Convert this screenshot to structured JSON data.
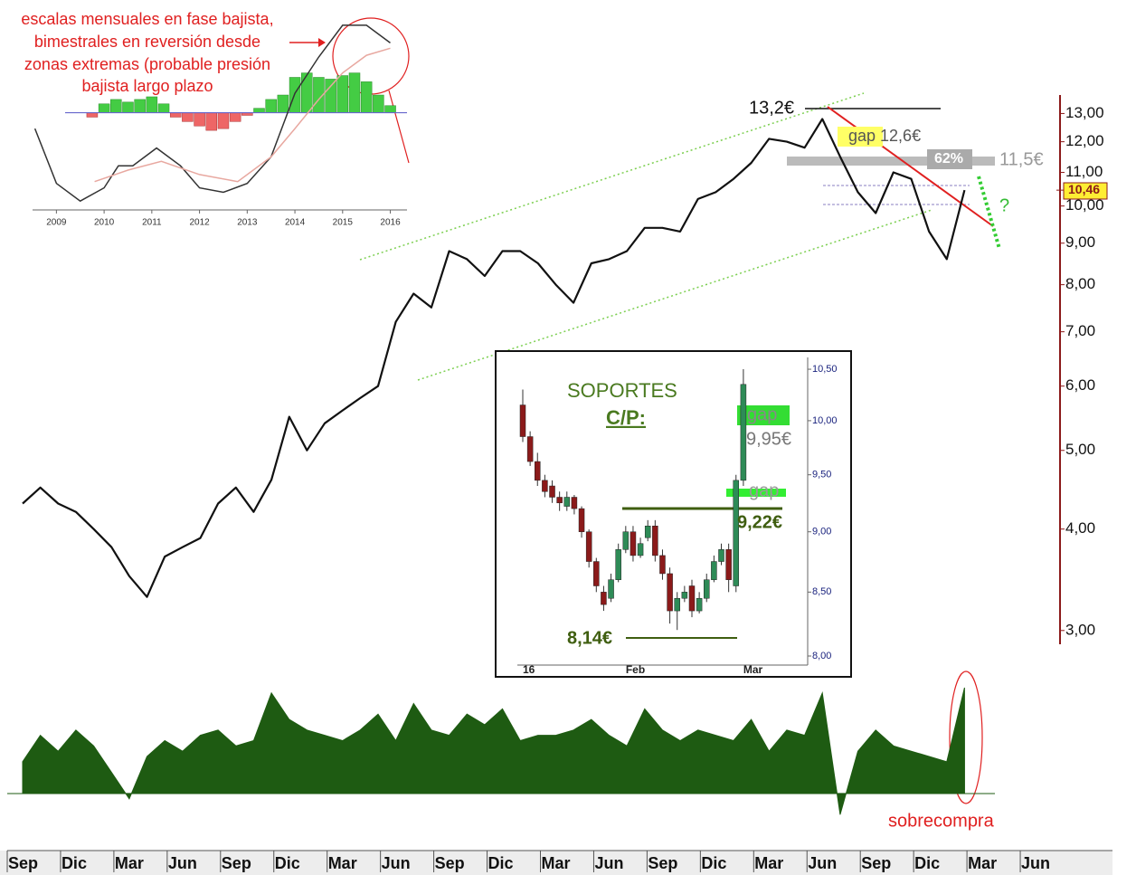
{
  "chart_data": [
    {
      "type": "line",
      "categories": [
        "Sep",
        null,
        null,
        "Dic",
        null,
        null,
        "Mar",
        null,
        null,
        "Jun",
        null,
        null,
        "Sep",
        null,
        null,
        "Dic",
        null,
        null,
        "Mar",
        null,
        null,
        "Jun",
        null,
        null,
        "Sep",
        null,
        null,
        "Dic",
        null,
        null,
        "Mar",
        null,
        null,
        "Jun",
        null,
        null,
        "Sep",
        null,
        null,
        "Dic",
        null,
        null,
        "Mar",
        null,
        null,
        "Jun",
        null,
        null,
        "Sep",
        null,
        null,
        "Dic",
        null,
        null,
        "Mar",
        null,
        null,
        "Jun"
      ],
      "series": [
        {
          "color": "#111111",
          "values": [
            4.3,
            4.5,
            4.3,
            4.2,
            4.0,
            3.8,
            3.5,
            3.3,
            3.7,
            3.8,
            3.9,
            4.3,
            4.5,
            4.2,
            4.6,
            5.5,
            5.0,
            5.4,
            5.6,
            5.8,
            6.0,
            7.2,
            7.8,
            7.5,
            8.8,
            8.6,
            8.2,
            8.8,
            8.8,
            8.5,
            8.0,
            7.6,
            8.5,
            8.6,
            8.8,
            9.4,
            9.4,
            9.3,
            10.2,
            10.4,
            10.8,
            11.3,
            12.1,
            12.0,
            11.8,
            12.8,
            11.5,
            10.4,
            9.8,
            11.0,
            10.8,
            9.3,
            8.6,
            10.46,
            null,
            null,
            null,
            null
          ]
        }
      ],
      "log_scale": true,
      "ylim": [
        2.9,
        13.7
      ],
      "yticks": [
        {
          "value": 3,
          "label": "3,00"
        },
        {
          "value": 4,
          "label": "4,00"
        },
        {
          "value": 5,
          "label": "5,00"
        },
        {
          "value": 6,
          "label": "6,00"
        },
        {
          "value": 7,
          "label": "7,00"
        },
        {
          "value": 8,
          "label": "8,00"
        },
        {
          "value": 9,
          "label": "9,00"
        },
        {
          "value": 10,
          "label": "10,00"
        },
        {
          "value": 11,
          "label": "11,00"
        },
        {
          "value": 12,
          "label": "12,00"
        },
        {
          "value": 13,
          "label": "13,00"
        }
      ],
      "last_value": {
        "value": 10.46,
        "label": "10,46"
      },
      "annotations": [
        "13,2€",
        "gap 12,6€",
        "62%",
        "11,5€",
        "?"
      ]
    },
    {
      "type": "area",
      "color": "#1e5b12",
      "values": [
        30,
        55,
        40,
        60,
        45,
        20,
        -5,
        35,
        50,
        40,
        55,
        60,
        45,
        50,
        95,
        70,
        60,
        55,
        50,
        60,
        75,
        50,
        85,
        60,
        55,
        75,
        65,
        80,
        50,
        55,
        55,
        60,
        70,
        55,
        45,
        80,
        60,
        50,
        60,
        55,
        50,
        70,
        40,
        60,
        55,
        95,
        -20,
        40,
        60,
        45,
        40,
        35,
        30,
        100,
        null,
        null,
        null,
        null
      ],
      "ylim": [
        -30,
        100
      ],
      "annotations": [
        "sobrecompra"
      ]
    },
    {
      "type": "macd",
      "x": [
        2009.75,
        2010,
        2010.25,
        2010.5,
        2010.75,
        2011,
        2011.25,
        2011.5,
        2011.75,
        2012,
        2012.25,
        2012.5,
        2012.75,
        2013,
        2013.25,
        2013.5,
        2013.75,
        2014,
        2014.25,
        2014.5,
        2014.75,
        2015,
        2015.25,
        2015.5,
        2015.75,
        2016
      ],
      "values": [
        -0.05,
        0.1,
        0.15,
        0.12,
        0.15,
        0.18,
        0.1,
        -0.05,
        -0.1,
        -0.15,
        -0.2,
        -0.18,
        -0.1,
        -0.03,
        0.05,
        0.15,
        0.2,
        0.4,
        0.45,
        0.4,
        0.38,
        0.42,
        0.45,
        0.35,
        0.2,
        0.08
      ],
      "series": [
        {
          "color": "#333333",
          "x": [
            2008.55,
            2009,
            2009.5,
            2010,
            2010.3,
            2010.6,
            2011.1,
            2011.6,
            2012,
            2012.5,
            2013,
            2013.5,
            2014,
            2014.5,
            2015,
            2015.5,
            2016
          ],
          "values": [
            -0.18,
            -0.8,
            -1.0,
            -0.85,
            -0.6,
            -0.6,
            -0.4,
            -0.6,
            -0.85,
            -0.9,
            -0.8,
            -0.5,
            0.22,
            0.63,
            0.99,
            0.99,
            0.79
          ]
        },
        {
          "color": "#e8a8a0",
          "x": [
            2009.8,
            2010.5,
            2011.2,
            2012,
            2012.8,
            2013.5,
            2014,
            2014.5,
            2015,
            2015.5,
            2016
          ],
          "values": [
            -0.78,
            -0.65,
            -0.55,
            -0.7,
            -0.78,
            -0.5,
            -0.18,
            0.15,
            0.45,
            0.65,
            0.73
          ]
        }
      ],
      "xlim": [
        2008.5,
        2016.35
      ],
      "xticks": [
        2009,
        2010,
        2011,
        2012,
        2013,
        2014,
        2015,
        2016
      ],
      "ylim": [
        -1.1,
        1.05
      ],
      "annotations": [
        "escalas mensuales en fase bajista,",
        "bimestrales en reversión desde",
        "zonas extremas (probable presión",
        "bajista largo plazo"
      ]
    },
    {
      "type": "candlestick",
      "categories": [
        "16",
        null,
        null,
        null,
        null,
        null,
        null,
        null,
        null,
        null,
        null,
        null,
        null,
        null,
        "Feb",
        null,
        null,
        null,
        null,
        null,
        null,
        null,
        null,
        null,
        null,
        null,
        null,
        null,
        null,
        null,
        "Mar"
      ],
      "open": [
        10.15,
        9.85,
        9.62,
        9.45,
        9.4,
        9.3,
        9.22,
        9.3,
        9.2,
        9.0,
        8.75,
        8.5,
        8.45,
        8.6,
        8.85,
        9.0,
        8.8,
        8.95,
        9.05,
        8.8,
        8.65,
        8.35,
        8.45,
        8.55,
        8.35,
        8.45,
        8.6,
        8.75,
        8.85,
        8.55,
        9.45
      ],
      "high": [
        10.3,
        9.9,
        9.7,
        9.5,
        9.45,
        9.35,
        9.35,
        9.32,
        9.22,
        9.02,
        8.78,
        8.55,
        8.65,
        8.9,
        9.05,
        9.05,
        8.95,
        9.1,
        9.1,
        8.85,
        8.7,
        8.5,
        8.55,
        8.6,
        8.5,
        8.65,
        8.8,
        8.9,
        8.9,
        9.5,
        10.5
      ],
      "low": [
        9.8,
        9.58,
        9.4,
        9.3,
        9.25,
        9.18,
        9.18,
        9.15,
        8.95,
        8.7,
        8.5,
        8.35,
        8.42,
        8.58,
        8.82,
        8.75,
        8.78,
        8.92,
        8.75,
        8.6,
        8.25,
        8.2,
        8.42,
        8.3,
        8.33,
        8.42,
        8.58,
        8.72,
        8.5,
        8.5,
        9.4
      ],
      "close": [
        9.85,
        9.62,
        9.45,
        9.35,
        9.3,
        9.25,
        9.3,
        9.2,
        9.0,
        8.75,
        8.55,
        8.4,
        8.6,
        8.85,
        9.0,
        8.8,
        8.9,
        9.05,
        8.8,
        8.65,
        8.35,
        8.45,
        8.5,
        8.35,
        8.45,
        8.6,
        8.75,
        8.85,
        8.6,
        9.45,
        10.35
      ],
      "log_scale": true,
      "ylim": [
        8.0,
        10.6
      ],
      "yticks": [
        {
          "value": 8,
          "label": "8,00"
        },
        {
          "value": 8.5,
          "label": "8,50"
        },
        {
          "value": 9,
          "label": "9,00"
        },
        {
          "value": 9.5,
          "label": "9,50"
        },
        {
          "value": 10,
          "label": "10,00"
        },
        {
          "value": 10.5,
          "label": "10,50"
        }
      ],
      "annotations": [
        "SOPORTES",
        "C/P:",
        "gap",
        "9,95€",
        "gap",
        "9,22€",
        "8,14€"
      ]
    }
  ]
}
